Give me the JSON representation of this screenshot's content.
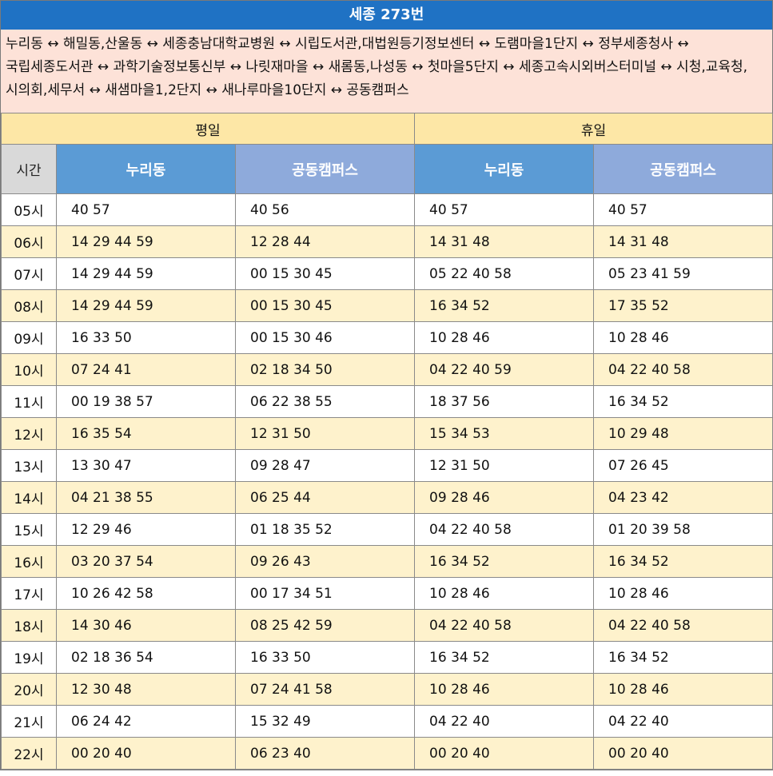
{
  "title": "세종 273번",
  "route": "누리동 ↔ 해밀동,산울동 ↔ 세종충남대학교병원 ↔ 시립도서관,대법원등기정보센터 ↔ 도램마을1단지 ↔ 정부세종청사 ↔ 국립세종도서관 ↔ 과학기술정보통신부 ↔ 나릿재마을 ↔ 새롬동,나성동 ↔ 첫마을5단지 ↔ 세종고속시외버스터미널 ↔ 시청,교육청,시의회,세무서 ↔ 새샘마을1,2단지 ↔ 새나루마을10단지 ↔ 공동캠퍼스",
  "headers": {
    "weekday": "평일",
    "holiday": "휴일",
    "time": "시간",
    "nuri": "누리동",
    "campus": "공동캠퍼스"
  },
  "rows": [
    {
      "hour": "05시",
      "wd_nuri": "40 57",
      "wd_campus": "40 56",
      "hd_nuri": "40 57",
      "hd_campus": "40 57"
    },
    {
      "hour": "06시",
      "wd_nuri": "14 29 44 59",
      "wd_campus": "12 28 44",
      "hd_nuri": "14 31 48",
      "hd_campus": "14 31 48"
    },
    {
      "hour": "07시",
      "wd_nuri": "14 29 44 59",
      "wd_campus": "00 15 30 45",
      "hd_nuri": "05 22 40 58",
      "hd_campus": "05 23 41 59"
    },
    {
      "hour": "08시",
      "wd_nuri": "14 29 44 59",
      "wd_campus": "00 15 30 45",
      "hd_nuri": "16 34 52",
      "hd_campus": "17 35 52"
    },
    {
      "hour": "09시",
      "wd_nuri": "16 33 50",
      "wd_campus": "00 15 30 46",
      "hd_nuri": "10 28 46",
      "hd_campus": "10 28 46"
    },
    {
      "hour": "10시",
      "wd_nuri": "07 24 41",
      "wd_campus": "02 18 34 50",
      "hd_nuri": "04 22 40 59",
      "hd_campus": "04 22 40 58"
    },
    {
      "hour": "11시",
      "wd_nuri": "00 19 38 57",
      "wd_campus": "06 22 38 55",
      "hd_nuri": "18 37 56",
      "hd_campus": "16 34 52"
    },
    {
      "hour": "12시",
      "wd_nuri": "16 35 54",
      "wd_campus": "12 31 50",
      "hd_nuri": "15 34 53",
      "hd_campus": "10 29 48"
    },
    {
      "hour": "13시",
      "wd_nuri": "13 30 47",
      "wd_campus": "09 28 47",
      "hd_nuri": "12 31 50",
      "hd_campus": "07 26 45"
    },
    {
      "hour": "14시",
      "wd_nuri": "04 21 38 55",
      "wd_campus": "06 25 44",
      "hd_nuri": "09 28 46",
      "hd_campus": "04 23 42"
    },
    {
      "hour": "15시",
      "wd_nuri": "12 29 46",
      "wd_campus": "01 18 35 52",
      "hd_nuri": "04 22 40 58",
      "hd_campus": "01 20 39 58"
    },
    {
      "hour": "16시",
      "wd_nuri": "03 20 37 54",
      "wd_campus": "09 26 43",
      "hd_nuri": "16 34 52",
      "hd_campus": "16 34 52"
    },
    {
      "hour": "17시",
      "wd_nuri": "10 26 42 58",
      "wd_campus": "00 17 34 51",
      "hd_nuri": "10 28 46",
      "hd_campus": "10 28 46"
    },
    {
      "hour": "18시",
      "wd_nuri": "14 30 46",
      "wd_campus": "08 25 42 59",
      "hd_nuri": "04 22 40 58",
      "hd_campus": "04 22 40 58"
    },
    {
      "hour": "19시",
      "wd_nuri": "02 18 36 54",
      "wd_campus": "16 33 50",
      "hd_nuri": "16 34 52",
      "hd_campus": "16 34 52"
    },
    {
      "hour": "20시",
      "wd_nuri": "12 30 48",
      "wd_campus": "07 24 41 58",
      "hd_nuri": "10 28 46",
      "hd_campus": "10 28 46"
    },
    {
      "hour": "21시",
      "wd_nuri": "06 24 42",
      "wd_campus": "15 32 49",
      "hd_nuri": "04 22 40",
      "hd_campus": "04 22 40"
    },
    {
      "hour": "22시",
      "wd_nuri": "00 20 40",
      "wd_campus": "06 23 40",
      "hd_nuri": "00 20 40",
      "hd_campus": "00 20 40"
    }
  ],
  "colors": {
    "title_bg": "#1f72c4",
    "route_bg": "#fde2d8",
    "group_bg": "#fde7a6",
    "nuri_header_bg": "#5b9bd5",
    "campus_header_bg": "#8eaadb",
    "time_header_bg": "#d9d9d9",
    "alt_row_bg": "#fef2cc"
  }
}
